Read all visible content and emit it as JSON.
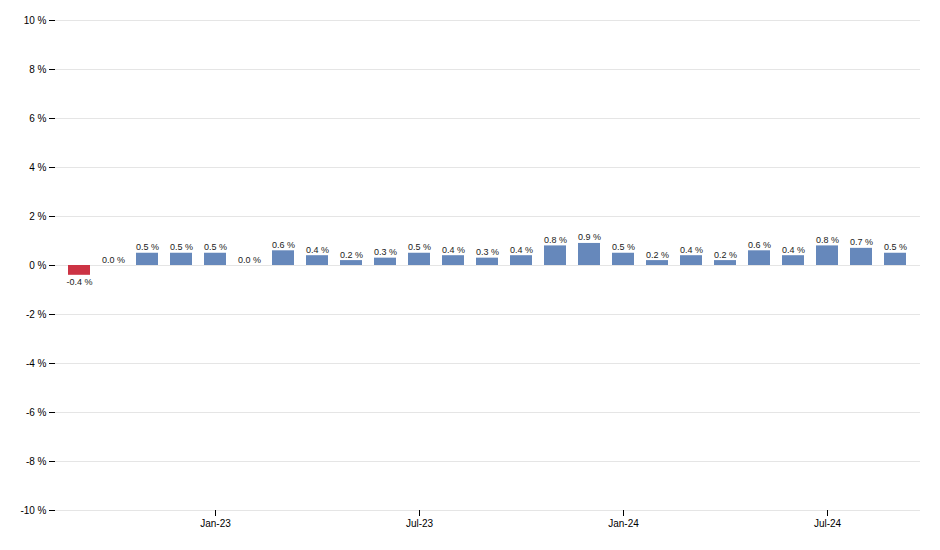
{
  "chart_data": {
    "type": "bar",
    "categories": [
      null,
      null,
      null,
      null,
      "Jan-23",
      null,
      null,
      null,
      null,
      null,
      "Jul-23",
      null,
      null,
      null,
      null,
      null,
      "Jan-24",
      null,
      null,
      null,
      null,
      null,
      "Jul-24",
      null,
      null
    ],
    "values": [
      -0.4,
      0.0,
      0.5,
      0.5,
      0.5,
      0.0,
      0.6,
      0.4,
      0.2,
      0.3,
      0.5,
      0.4,
      0.3,
      0.4,
      0.8,
      0.9,
      0.5,
      0.2,
      0.4,
      0.2,
      0.6,
      0.4,
      0.8,
      0.7,
      0.5
    ],
    "value_labels": [
      "-0.4 %",
      "0.0 %",
      "0.5 %",
      "0.5 %",
      "0.5 %",
      "0.0 %",
      "0.6 %",
      "0.4 %",
      "0.2 %",
      "0.3 %",
      "0.5 %",
      "0.4 %",
      "0.3 %",
      "0.4 %",
      "0.8 %",
      "0.9 %",
      "0.5 %",
      "0.2 %",
      "0.4 %",
      "0.2 %",
      "0.6 %",
      "0.4 %",
      "0.8 %",
      "0.7 %",
      "0.5 %"
    ],
    "colors": [
      "#cc3344",
      "#6688bb",
      "#6688bb",
      "#6688bb",
      "#6688bb",
      "#6688bb",
      "#6688bb",
      "#6688bb",
      "#6688bb",
      "#6688bb",
      "#6688bb",
      "#6688bb",
      "#6688bb",
      "#6688bb",
      "#6688bb",
      "#6688bb",
      "#6688bb",
      "#6688bb",
      "#6688bb",
      "#6688bb",
      "#6688bb",
      "#6688bb",
      "#6688bb",
      "#6688bb",
      "#6688bb"
    ],
    "ylim": [
      -10,
      10
    ],
    "yticks": [
      {
        "value": -10,
        "label": "-10 %"
      },
      {
        "value": -8,
        "label": "-8 %"
      },
      {
        "value": -6,
        "label": "-6 %"
      },
      {
        "value": -4,
        "label": "-4 %"
      },
      {
        "value": -2,
        "label": "-2 %"
      },
      {
        "value": 0,
        "label": "0 %"
      },
      {
        "value": 2,
        "label": "2 %"
      },
      {
        "value": 4,
        "label": "4 %"
      },
      {
        "value": 6,
        "label": "6 %"
      },
      {
        "value": 8,
        "label": "8 %"
      },
      {
        "value": 10,
        "label": "10 %"
      }
    ],
    "grid": true,
    "data_labels": true
  }
}
